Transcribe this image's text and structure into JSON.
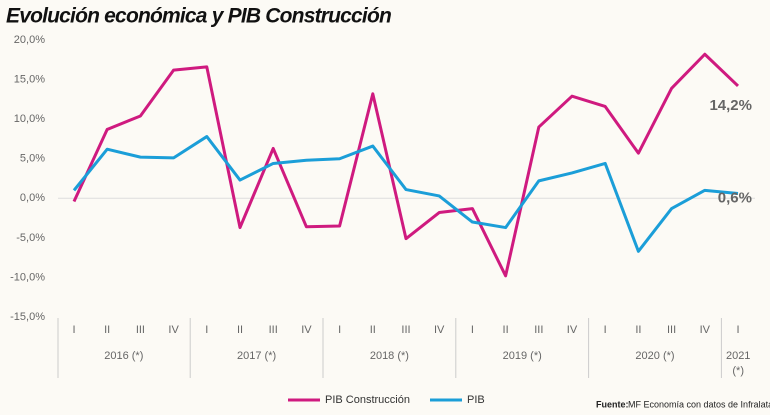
{
  "chart_data": {
    "type": "line",
    "title": "Evolución económica y PIB Construcción",
    "categories": [
      "I",
      "II",
      "III",
      "IV",
      "I",
      "II",
      "III",
      "IV",
      "I",
      "II",
      "III",
      "IV",
      "I",
      "II",
      "III",
      "IV",
      "I",
      "II",
      "III",
      "IV",
      "I"
    ],
    "category_groups": [
      {
        "label": "2016 (*)",
        "size": 4
      },
      {
        "label": "2017 (*)",
        "size": 4
      },
      {
        "label": "2018 (*)",
        "size": 4
      },
      {
        "label": "2019 (*)",
        "size": 4
      },
      {
        "label": "2020 (*)",
        "size": 4
      },
      {
        "label": "2021 (*)",
        "size": 1
      }
    ],
    "series": [
      {
        "name": "PIB Construcción",
        "color": "#cf1a7f",
        "values": [
          -0.4,
          8.7,
          10.4,
          16.2,
          16.6,
          -3.7,
          6.3,
          -3.6,
          -3.5,
          13.2,
          -5.1,
          -1.8,
          -1.3,
          -9.8,
          9.0,
          12.9,
          11.6,
          5.7,
          13.9,
          18.2,
          14.2
        ],
        "value_labels": [
          null,
          null,
          null,
          null,
          null,
          null,
          null,
          null,
          null,
          null,
          null,
          null,
          null,
          null,
          null,
          null,
          null,
          null,
          null,
          null,
          "14,2%"
        ]
      },
      {
        "name": "PIB",
        "color": "#1b9ed8",
        "values": [
          1.0,
          6.2,
          5.2,
          5.1,
          7.8,
          2.3,
          4.4,
          4.8,
          5.0,
          6.6,
          1.1,
          0.3,
          -3.0,
          -3.7,
          2.2,
          3.2,
          4.4,
          -6.7,
          -1.3,
          1.0,
          0.6
        ],
        "value_labels": [
          null,
          null,
          null,
          null,
          null,
          null,
          null,
          null,
          null,
          null,
          null,
          null,
          null,
          null,
          null,
          null,
          null,
          null,
          null,
          null,
          "0,6%"
        ]
      }
    ],
    "ylim": [
      -15,
      20
    ],
    "yticks": [
      {
        "value": -15,
        "label": "-15,0%"
      },
      {
        "value": -10,
        "label": "-10,0%"
      },
      {
        "value": -5,
        "label": "-5,0%"
      },
      {
        "value": 0,
        "label": "0,0%"
      },
      {
        "value": 5,
        "label": "5,0%"
      },
      {
        "value": 10,
        "label": "10,0%"
      },
      {
        "value": 15,
        "label": "15,0%"
      },
      {
        "value": 20,
        "label": "20,0%"
      }
    ],
    "zero_line": true,
    "source_label": "Fuente:",
    "source": "MF Economía con datos de Infralatam"
  }
}
